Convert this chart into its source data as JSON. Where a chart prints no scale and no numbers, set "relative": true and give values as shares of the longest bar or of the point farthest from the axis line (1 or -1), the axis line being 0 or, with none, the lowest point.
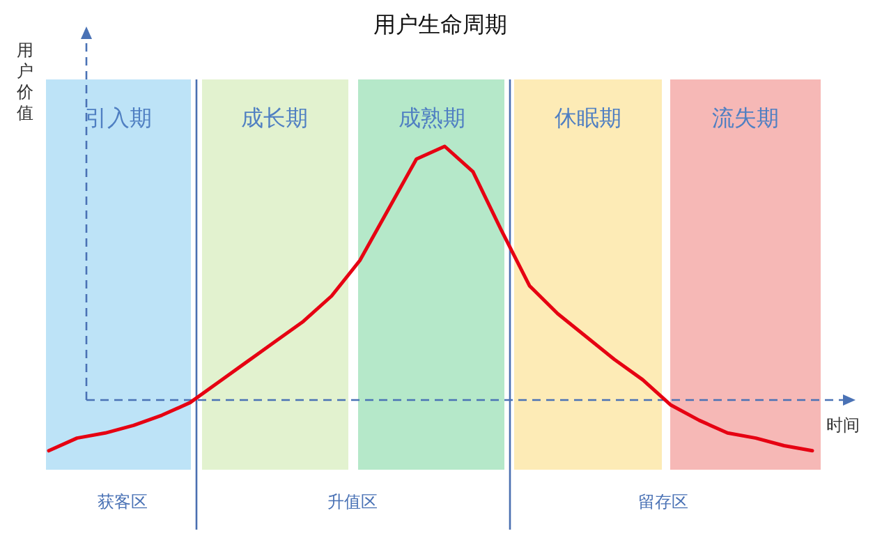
{
  "chart_data": {
    "type": "line",
    "title": "用户生命周期",
    "xlabel": "时间",
    "ylabel": "用户价值",
    "relative": true,
    "marker": "none",
    "line_style": "solid",
    "categories": [
      null,
      null,
      null,
      null,
      null,
      null,
      null,
      null,
      null,
      null,
      null,
      null,
      null,
      null,
      null,
      null,
      null,
      null,
      null,
      null,
      null,
      null,
      null,
      null,
      null,
      null,
      null,
      null
    ],
    "series": [
      {
        "color": "#e60012",
        "values": [
          -0.2,
          -0.15,
          -0.13,
          -0.1,
          -0.06,
          -0.01,
          0.07,
          0.15,
          0.23,
          0.31,
          0.41,
          0.55,
          0.75,
          0.95,
          1,
          0.9,
          0.67,
          0.45,
          0.34,
          0.25,
          0.16,
          0.08,
          -0.02,
          -0.08,
          -0.13,
          -0.15,
          -0.18,
          -0.2
        ]
      }
    ],
    "ref_lines": [
      {
        "axis": "y",
        "value": 0,
        "color": "#4a72b5",
        "line_style": "dashed"
      }
    ],
    "annotations": [
      "引入期",
      "成长期",
      "成熟期",
      "休眠期",
      "流失期",
      "获客区",
      "升值区",
      "留存区"
    ]
  }
}
